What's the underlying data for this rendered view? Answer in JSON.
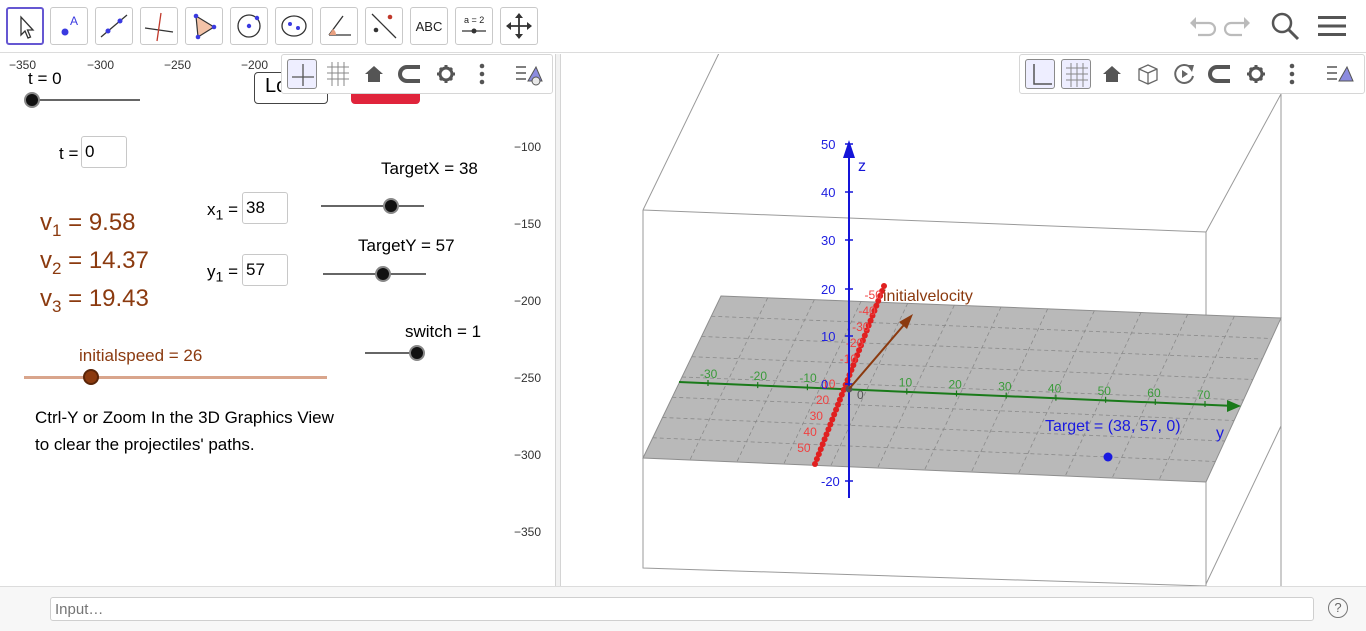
{
  "toolbar": {
    "tools": [
      {
        "name": "move-tool",
        "icon": "cursor-arrow-icon",
        "active": true
      },
      {
        "name": "point-tool",
        "icon": "point-a-icon"
      },
      {
        "name": "line-tool",
        "icon": "line-through-points-icon"
      },
      {
        "name": "perpendicular-line-tool",
        "icon": "perpendicular-line-icon"
      },
      {
        "name": "polygon-tool",
        "icon": "polygon-icon"
      },
      {
        "name": "circle-tool",
        "icon": "circle-center-point-icon"
      },
      {
        "name": "ellipse-tool",
        "icon": "ellipse-icon"
      },
      {
        "name": "angle-tool",
        "icon": "angle-icon"
      },
      {
        "name": "reflect-tool",
        "icon": "reflect-line-icon"
      },
      {
        "name": "text-tool",
        "icon": "text-abc-icon",
        "text": "ABC"
      },
      {
        "name": "slider-tool",
        "icon": "slider-a2-icon",
        "text": "a = 2"
      },
      {
        "name": "move-graphics-tool",
        "icon": "move-cross-arrows-icon"
      }
    ],
    "undo_icon": "undo-icon",
    "redo_icon": "redo-icon",
    "search_icon": "search-icon",
    "menu_icon": "menu-hamburger-icon"
  },
  "graphics2d": {
    "x_ticks": [
      "−350",
      "−300",
      "−250",
      "−200"
    ],
    "y_ticks": [
      "−100",
      "−150",
      "−200",
      "−250",
      "−300",
      "−350"
    ],
    "buttons": {
      "load_partial": "Lo",
      "red_button_text": ""
    },
    "slider_t_label": "t = 0",
    "input_t_label": "t =",
    "input_t_value": "0",
    "targetx_label": "TargetX = 38",
    "targety_label": "TargetY = 57",
    "x1_label": "x",
    "x1_sub": "1",
    "x1_eq": " =",
    "x1_value": "38",
    "y1_label": "y",
    "y1_sub": "1",
    "y1_eq": " =",
    "y1_value": "57",
    "v1": {
      "name": "v",
      "sub": "1",
      "value": " = 9.58"
    },
    "v2": {
      "name": "v",
      "sub": "2",
      "value": " = 14.37"
    },
    "v3": {
      "name": "v",
      "sub": "3",
      "value": " = 19.43"
    },
    "switch_label": "switch = 1",
    "initialspeed_label": "initialspeed = 26",
    "note_line1": "Ctrl-Y or Zoom In the 3D Graphics View",
    "note_line2": "to clear the projectiles' paths.",
    "sliders": {
      "t": 0.0,
      "targetx": 0.68,
      "targety": 0.58,
      "switch": 1.0,
      "initialspeed": 0.22
    },
    "colors": {
      "value_text": "#8b3a0f",
      "initialspeed_track": "#d9a58c",
      "red_button": "#e0243b"
    }
  },
  "stylebar2d": {
    "icons": [
      "axes-icon",
      "grid-icon",
      "home-icon",
      "magnet-icon",
      "gear-icon",
      "more-vert-icon",
      "toggle-stylebar-icon"
    ]
  },
  "stylebar3d": {
    "icons": [
      "axes-icon",
      "grid-icon",
      "home-icon",
      "cube-icon",
      "rotate-icon",
      "magnet-icon",
      "gear-icon",
      "more-vert-icon",
      "toggle-stylebar-icon"
    ]
  },
  "graphics3d": {
    "z_axis_label": "z",
    "y_axis_label": "y",
    "z_ticks": [
      "50",
      "40",
      "30",
      "20",
      "10",
      "0",
      "-20"
    ],
    "x_ticks_green": [
      "-30",
      "-20",
      "-10",
      "10",
      "20",
      "30",
      "40",
      "50",
      "60",
      "70"
    ],
    "red_ticks": [
      "-50",
      "-40",
      "-30",
      "-20",
      "-10",
      "10",
      "20",
      "30",
      "40",
      "50"
    ],
    "origin_label": "0",
    "vector_label": "initialvelocity",
    "target_label": "Target = (38, 57, 0)",
    "colors": {
      "z_axis": "#1414d8",
      "x_axis": "#1a7a1a",
      "red_axis": "#e02020",
      "vector": "#8b3a0f",
      "plane": "#b9b9b9",
      "target": "#1a1ae0"
    }
  },
  "inputbar": {
    "placeholder": "Input…",
    "help_icon": "help-icon",
    "help_text": "?"
  }
}
